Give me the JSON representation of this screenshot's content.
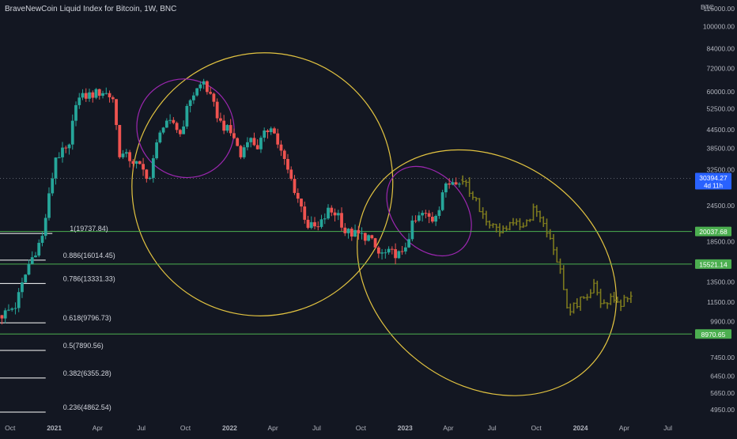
{
  "legend": {
    "title": "BraveNewCoin Liquid Index for Bitcoin, 1W, BNC"
  },
  "colors": {
    "background": "#131722",
    "up": "#26a69a",
    "down": "#ef5350",
    "projection": "#7d7a1e",
    "fib_line": "#ffffff",
    "hline": "#4caf50",
    "ellipse_outer": "#e3c441",
    "ellipse_inner": "#9c27b0",
    "axis_text": "#b2b5be",
    "price_tag_current": "#2962ff",
    "price_tag_level": "#4caf50"
  },
  "chart_data": {
    "type": "candlestick",
    "title": "BraveNewCoin Liquid Index for Bitcoin, 1W, BNC",
    "y_scale": "log",
    "ylim": [
      4600,
      120000
    ],
    "y_unit": "BTC",
    "y_ticks": [
      115000,
      100000,
      84000,
      72000,
      60000,
      52500,
      44500,
      38500,
      32500,
      24500,
      18500,
      13500,
      11500,
      9900,
      7450,
      6450,
      5650,
      4950
    ],
    "x_ticks": [
      "Oct",
      "2021",
      "Apr",
      "Jul",
      "Oct",
      "2022",
      "Apr",
      "Jul",
      "Oct",
      "2023",
      "Apr",
      "Jul",
      "Oct",
      "2024",
      "Apr",
      "Jul"
    ],
    "x_tick_dates": [
      "2020-10-01",
      "2021-01-01",
      "2021-04-01",
      "2021-07-01",
      "2021-10-01",
      "2022-01-01",
      "2022-04-01",
      "2022-07-01",
      "2022-10-01",
      "2023-01-01",
      "2023-04-01",
      "2023-07-01",
      "2023-10-01",
      "2024-01-01",
      "2024-04-01",
      "2024-07-01"
    ],
    "xlim": [
      "2020-09-10",
      "2024-08-20"
    ],
    "anchors": [
      [
        "2020-09-14",
        10400
      ],
      [
        "2020-10-12",
        11200
      ],
      [
        "2020-11-09",
        15500
      ],
      [
        "2020-12-07",
        19200
      ],
      [
        "2021-01-04",
        36000
      ],
      [
        "2021-02-01",
        38500
      ],
      [
        "2021-02-15",
        56000
      ],
      [
        "2021-03-08",
        58000
      ],
      [
        "2021-04-12",
        60000
      ],
      [
        "2021-05-03",
        57000
      ],
      [
        "2021-05-17",
        37000
      ],
      [
        "2021-06-07",
        35500
      ],
      [
        "2021-06-21",
        34000
      ],
      [
        "2021-07-19",
        30500
      ],
      [
        "2021-08-09",
        45000
      ],
      [
        "2021-09-06",
        47000
      ],
      [
        "2021-09-20",
        43000
      ],
      [
        "2021-10-11",
        57000
      ],
      [
        "2021-10-25",
        61000
      ],
      [
        "2021-11-08",
        65000
      ],
      [
        "2021-11-22",
        57000
      ],
      [
        "2021-12-13",
        47000
      ],
      [
        "2022-01-10",
        42000
      ],
      [
        "2022-01-24",
        36000
      ],
      [
        "2022-02-07",
        42000
      ],
      [
        "2022-02-28",
        39000
      ],
      [
        "2022-03-28",
        46500
      ],
      [
        "2022-04-11",
        40000
      ],
      [
        "2022-05-09",
        30000
      ],
      [
        "2022-06-13",
        21000
      ],
      [
        "2022-07-04",
        20500
      ],
      [
        "2022-07-25",
        23500
      ],
      [
        "2022-08-15",
        23000
      ],
      [
        "2022-08-29",
        20000
      ],
      [
        "2022-09-26",
        19500
      ],
      [
        "2022-10-17",
        19200
      ],
      [
        "2022-11-07",
        16800
      ],
      [
        "2022-12-12",
        16900
      ],
      [
        "2022-12-26",
        16600
      ],
      [
        "2023-01-16",
        21000
      ],
      [
        "2023-02-06",
        23000
      ],
      [
        "2023-02-27",
        22000
      ],
      [
        "2023-03-13",
        24500
      ],
      [
        "2023-03-20",
        27500
      ],
      [
        "2023-04-10",
        30000
      ],
      [
        "2023-04-24",
        30300
      ]
    ],
    "projection_anchors": [
      [
        "2023-05-01",
        30000
      ],
      [
        "2023-05-22",
        26500
      ],
      [
        "2023-06-19",
        21500
      ],
      [
        "2023-07-17",
        19800
      ],
      [
        "2023-08-14",
        21500
      ],
      [
        "2023-09-04",
        20500
      ],
      [
        "2023-09-25",
        23500
      ],
      [
        "2023-10-16",
        21500
      ],
      [
        "2023-10-30",
        18500
      ],
      [
        "2023-11-20",
        15300
      ],
      [
        "2023-12-04",
        10900
      ],
      [
        "2023-12-25",
        11200
      ],
      [
        "2024-01-15",
        12400
      ],
      [
        "2024-01-29",
        13000
      ],
      [
        "2024-02-12",
        11600
      ],
      [
        "2024-03-04",
        11800
      ],
      [
        "2024-03-25",
        11400
      ],
      [
        "2024-04-15",
        12000
      ]
    ],
    "fib_levels": [
      {
        "label": "1(19737.84)",
        "value": 19737.84,
        "end_date": "2020-12-28"
      },
      {
        "label": "0.886(16014.45)",
        "value": 16014.45,
        "end_date": "2020-12-14"
      },
      {
        "label": "0.786(13331.33)",
        "value": 13331.33,
        "end_date": "2020-12-14"
      },
      {
        "label": "0.618(9796.73)",
        "value": 9796.73,
        "end_date": "2020-12-14"
      },
      {
        "label": "0.5(7890.56)",
        "value": 7890.56,
        "end_date": "2020-12-14"
      },
      {
        "label": "0.382(6355.28)",
        "value": 6355.28,
        "end_date": "2020-12-14"
      },
      {
        "label": "0.236(4862.54)",
        "value": 4862.54,
        "end_date": "2020-12-14"
      }
    ],
    "horizontal_lines": [
      {
        "value": 20037.68,
        "label": "20037.68"
      },
      {
        "value": 15521.14,
        "label": "15521.14"
      },
      {
        "value": 8970.65,
        "label": "8970.65"
      }
    ],
    "current_price": {
      "value": 30394.27,
      "label": "30394.27",
      "countdown": "4d 11h"
    },
    "ellipses": [
      {
        "kind": "outer",
        "center_date": "2022-03-10",
        "center_value": 29000,
        "rx_days": 270,
        "ry_log": 0.45,
        "angle": 32
      },
      {
        "kind": "inner",
        "center_date": "2021-10-01",
        "center_value": 45000,
        "rx_days": 100,
        "ry_log": 0.17,
        "angle": -35
      },
      {
        "kind": "outer",
        "center_date": "2023-06-20",
        "center_value": 14500,
        "rx_days": 290,
        "ry_log": 0.38,
        "angle": 38
      },
      {
        "kind": "inner",
        "center_date": "2023-02-20",
        "center_value": 23500,
        "rx_days": 75,
        "ry_log": 0.17,
        "angle": -40
      }
    ]
  }
}
